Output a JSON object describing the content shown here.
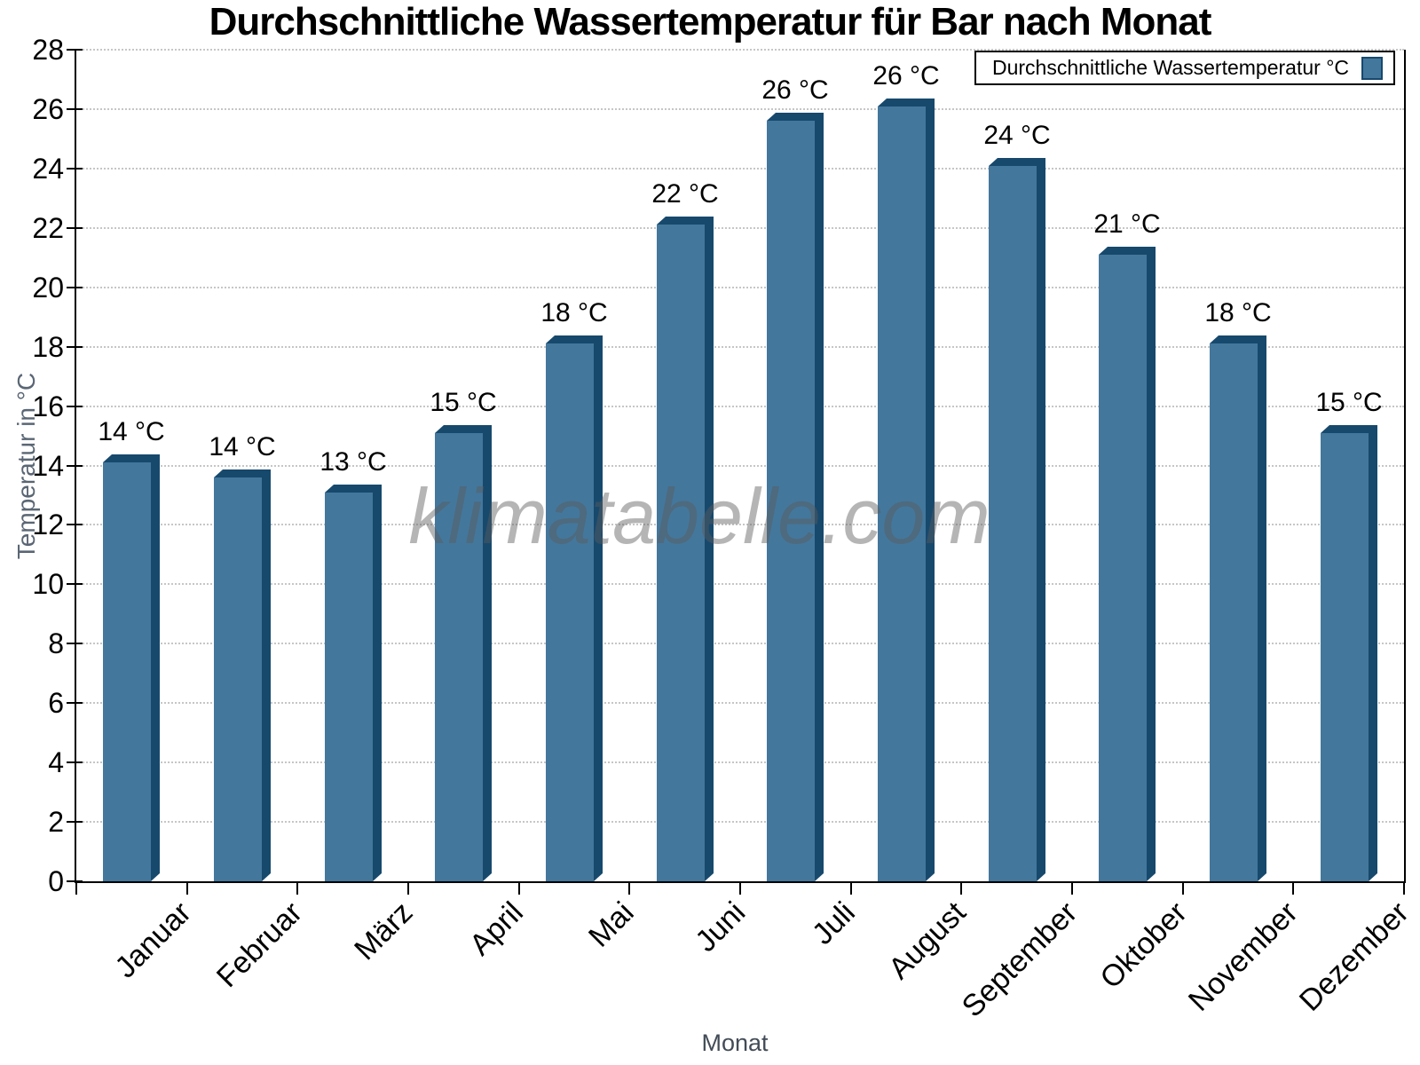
{
  "chart_data": {
    "type": "bar",
    "title": "Durchschnittliche Wassertemperatur für Bar nach Monat",
    "xlabel": "Monat",
    "ylabel": "Temperatur in °C",
    "categories": [
      "Januar",
      "Februar",
      "März",
      "April",
      "Mai",
      "Juni",
      "Juli",
      "August",
      "September",
      "Oktober",
      "November",
      "Dezember"
    ],
    "values": [
      14.1,
      13.6,
      13.1,
      15.1,
      18.1,
      22.1,
      25.6,
      26.1,
      24.1,
      21.1,
      18.1,
      15.1
    ],
    "bar_labels": [
      "14 °C",
      "14 °C",
      "13 °C",
      "15 °C",
      "18 °C",
      "22 °C",
      "26 °C",
      "26 °C",
      "24 °C",
      "21 °C",
      "18 °C",
      "15 °C"
    ],
    "ylim": [
      0,
      28
    ],
    "ytick_step": 2,
    "grid": "horizontal-dotted",
    "legend": {
      "label": "Durchschnittliche Wassertemperatur °C",
      "position": "top-right"
    },
    "watermark": "klimatabelle.com",
    "colors": {
      "bar_face": "#44779c",
      "bar_edge": "#17496d",
      "grid_line": "#c6c6c6",
      "axis_line": "#000000",
      "tick_label": "#000000",
      "y_axis_title": "#5a6674",
      "x_axis_title": "#434c57",
      "watermark_gray": "#5a5a5a"
    }
  }
}
